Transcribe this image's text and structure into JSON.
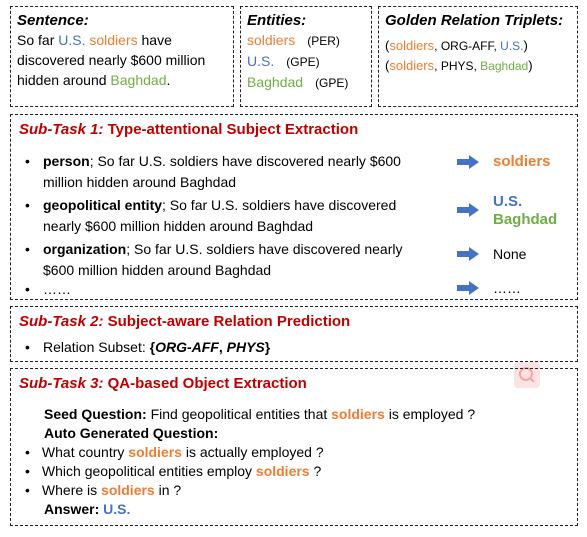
{
  "sentence_box": {
    "title": "Sentence:",
    "line1": [
      "So far ",
      "U.S.",
      " ",
      "soldiers",
      " have"
    ],
    "line2": "discovered nearly $600 million",
    "line3": [
      "hidden around ",
      "Baghdad",
      "."
    ]
  },
  "entities_box": {
    "title": "Entities:",
    "entities": [
      {
        "name": "soldiers",
        "type": "(PER)",
        "color": "#ED7D31"
      },
      {
        "name": "U.S.",
        "type": "(GPE)",
        "color": "#4472C4"
      },
      {
        "name": "Baghdad",
        "type": "(GPE)",
        "color": "#70AD47"
      }
    ]
  },
  "golden_box": {
    "title": "Golden Relation Triplets:",
    "triplets": [
      {
        "open": "(",
        "subject": "soldiers",
        "sep1": ", ",
        "relation": "ORG-AFF",
        "sep2": ", ",
        "object": "U.S.",
        "close": ")",
        "subject_color": "#ED7D31",
        "object_color": "#4472C4"
      },
      {
        "open": "(",
        "subject": "soldiers",
        "sep1": ", ",
        "relation": "PHYS",
        "sep2": ", ",
        "object": "Baghdad",
        "close": ")",
        "subject_color": "#ED7D31",
        "object_color": "#70AD47"
      }
    ]
  },
  "task1": {
    "label": "Sub-Task 1:",
    "title": " Type-attentional Subject Extraction",
    "items": [
      {
        "type": "person",
        "line1": "; So far U.S. soldiers have discovered nearly $600",
        "line2": "million hidden around Baghdad",
        "results": [
          "soldiers"
        ]
      },
      {
        "type": "geopolitical entity",
        "line1": "; So far U.S. soldiers have discovered",
        "line2": "nearly $600 million hidden around Baghdad",
        "results": [
          "U.S.",
          "Baghdad"
        ]
      },
      {
        "type": "organization",
        "line1": "; So far U.S. soldiers have discovered nearly",
        "line2": "$600 million hidden around Baghdad",
        "results": [
          "None"
        ]
      },
      {
        "type": "",
        "line1": "……",
        "line2": "",
        "results": [
          "……"
        ]
      }
    ]
  },
  "task2": {
    "label": "Sub-Task 2:",
    "title": " Subject-aware Relation Prediction",
    "subset_label": "Relation Subset: ",
    "subset_open": "{",
    "subset_r1": "ORG-AFF",
    "subset_sep": ", ",
    "subset_r2": "PHYS",
    "subset_close": "}"
  },
  "task3": {
    "label": "Sub-Task 3:",
    "title": " QA-based Object Extraction",
    "seed_label": "Seed Question:",
    "seed_pre": " Find geopolitical entities that ",
    "seed_subject": "soldiers",
    "seed_post": " is employed ?",
    "auto_label": "Auto Generated Question:",
    "questions": [
      {
        "pre": "What country ",
        "subject": "soldiers",
        "post": " is actually employed ?"
      },
      {
        "pre": "Which geopolitical entities employ ",
        "subject": "soldiers",
        "post": " ?"
      },
      {
        "pre": "Where is ",
        "subject": "soldiers",
        "post": " in ?"
      }
    ],
    "answer_label": "Answer:",
    "answer_value": "U.S."
  },
  "colors": {
    "subject_orange": "#ED7D31",
    "gpe_blue": "#4472C4",
    "gpe_green": "#70AD47",
    "title_red": "#C00000",
    "arrow_blue": "#4472C4"
  },
  "icons": {
    "arrow": "right-arrow-icon",
    "bullet": "bullet-dot-icon",
    "watermark": "magnifier-watermark-icon"
  }
}
